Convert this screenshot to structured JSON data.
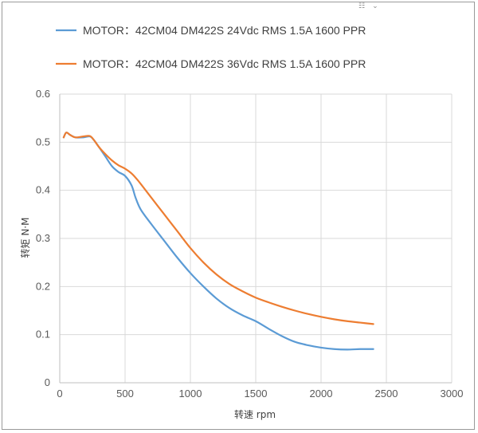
{
  "chart_data": {
    "type": "line",
    "title": "",
    "xlabel": "转速 rpm",
    "ylabel": "转矩 N·M",
    "xlim": [
      0,
      3000
    ],
    "ylim": [
      0,
      0.6
    ],
    "x_ticks": [
      0,
      500,
      1000,
      1500,
      2000,
      2500,
      3000
    ],
    "y_ticks": [
      0,
      0.1,
      0.2,
      0.3,
      0.4,
      0.5,
      0.6
    ],
    "x_tick_labels": [
      "0",
      "500",
      "1000",
      "1500",
      "2000",
      "2500",
      "3000"
    ],
    "y_tick_labels": [
      "0",
      "0.1",
      "0.2",
      "0.3",
      "0.4",
      "0.5",
      "0.6"
    ],
    "grid": true,
    "legend_position": "top",
    "series": [
      {
        "name": "MOTOR：42CM04 DM422S 24Vdc RMS 1.5A  1600 PPR",
        "color": "#5b9bd5",
        "x": [
          30,
          50,
          80,
          120,
          180,
          230,
          260,
          300,
          350,
          400,
          450,
          500,
          550,
          580,
          620,
          700,
          800,
          900,
          1000,
          1100,
          1200,
          1300,
          1400,
          1500,
          1600,
          1700,
          1800,
          1900,
          2000,
          2100,
          2200,
          2300,
          2400
        ],
        "values": [
          0.51,
          0.52,
          0.515,
          0.51,
          0.51,
          0.512,
          0.505,
          0.49,
          0.47,
          0.45,
          0.438,
          0.43,
          0.41,
          0.385,
          0.36,
          0.33,
          0.295,
          0.26,
          0.228,
          0.2,
          0.175,
          0.155,
          0.14,
          0.128,
          0.112,
          0.097,
          0.085,
          0.078,
          0.073,
          0.07,
          0.069,
          0.07,
          0.07
        ]
      },
      {
        "name": "MOTOR：42CM04 DM422S 36Vdc RMS 1.5A  1600 PPR",
        "color": "#ed7d31",
        "x": [
          30,
          50,
          80,
          120,
          180,
          230,
          260,
          300,
          350,
          400,
          450,
          500,
          550,
          600,
          700,
          800,
          900,
          1000,
          1100,
          1200,
          1300,
          1400,
          1500,
          1600,
          1700,
          1800,
          1900,
          2000,
          2100,
          2200,
          2300,
          2400
        ],
        "values": [
          0.51,
          0.52,
          0.515,
          0.51,
          0.512,
          0.513,
          0.505,
          0.49,
          0.475,
          0.462,
          0.452,
          0.445,
          0.435,
          0.42,
          0.385,
          0.35,
          0.315,
          0.28,
          0.25,
          0.225,
          0.205,
          0.19,
          0.177,
          0.167,
          0.158,
          0.15,
          0.143,
          0.137,
          0.132,
          0.128,
          0.125,
          0.122
        ]
      }
    ]
  },
  "corner_icon": "qr-dropdown-icon"
}
